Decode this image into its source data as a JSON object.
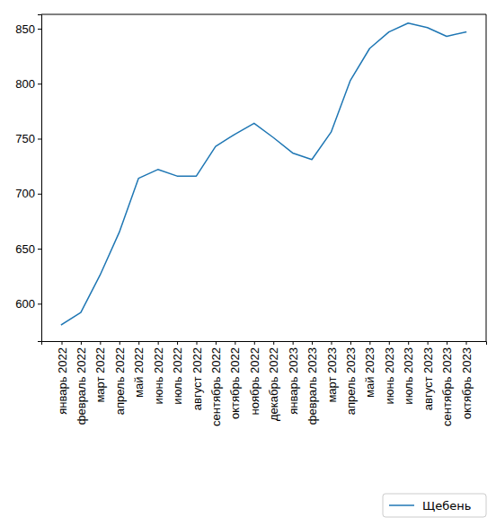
{
  "chart_data": {
    "type": "line",
    "categories": [
      "январь 2022",
      "февраль 2022",
      "март 2022",
      "апрель 2022",
      "май 2022",
      "июнь 2022",
      "июль 2022",
      "август 2022",
      "сентябрь 2022",
      "октябрь 2022",
      "ноябрь 2022",
      "декабрь 2022",
      "январь 2023",
      "февраль 2023",
      "март 2023",
      "апрель 2023",
      "май 2023",
      "июнь 2023",
      "июль 2023",
      "август 2023",
      "сентябрь 2023",
      "октябрь 2023"
    ],
    "series": [
      {
        "name": "Щебень",
        "color": "#1f77b4",
        "values": [
          581,
          592,
          626,
          665,
          714,
          722,
          716,
          716,
          743,
          754,
          764,
          751,
          737,
          731,
          756,
          803,
          832,
          847,
          855,
          851,
          843,
          847
        ]
      }
    ],
    "ylim": [
      566,
      863
    ],
    "yticks": [
      600,
      650,
      700,
      750,
      800,
      850
    ],
    "grid": false,
    "legend": "lower right"
  }
}
